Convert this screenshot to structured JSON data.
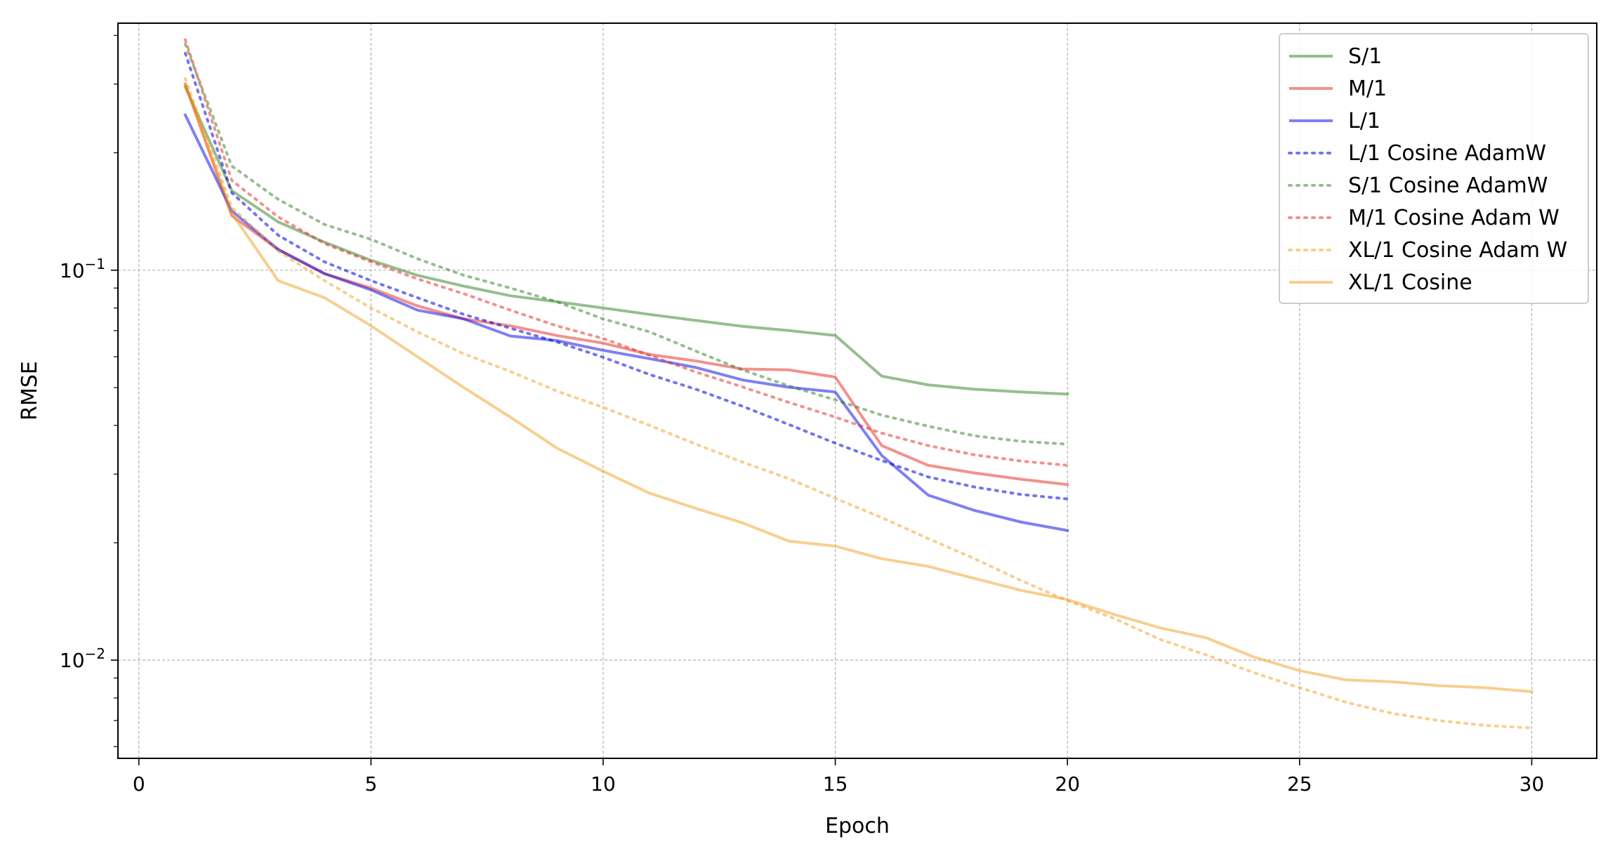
{
  "chart_data": {
    "type": "line",
    "xlabel": "Epoch",
    "ylabel": "RMSE",
    "xlim": [
      -0.45,
      31.4
    ],
    "ylim": [
      0.0056,
      0.43
    ],
    "yscale": "log",
    "grid": true,
    "legend_position": "top-right",
    "x_ticks": [
      {
        "value": 0,
        "label": "0"
      },
      {
        "value": 5,
        "label": "5"
      },
      {
        "value": 10,
        "label": "10"
      },
      {
        "value": 15,
        "label": "15"
      },
      {
        "value": 20,
        "label": "20"
      },
      {
        "value": 25,
        "label": "25"
      },
      {
        "value": 30,
        "label": "30"
      }
    ],
    "y_ticks": [
      {
        "value": 0.1,
        "base": "10",
        "exp": "−1"
      },
      {
        "value": 0.01,
        "base": "10",
        "exp": "−2"
      }
    ],
    "series": [
      {
        "name": "S/1",
        "color": "#2e7d1f",
        "opacity": 0.5,
        "dash": "solid",
        "x": [
          1,
          2,
          3,
          4,
          5,
          6,
          7,
          8,
          9,
          10,
          11,
          12,
          13,
          14,
          15,
          16,
          17,
          18,
          19,
          20
        ],
        "y": [
          0.295,
          0.16,
          0.133,
          0.118,
          0.106,
          0.097,
          0.091,
          0.086,
          0.083,
          0.08,
          0.077,
          0.0743,
          0.0718,
          0.07,
          0.068,
          0.0535,
          0.0508,
          0.0495,
          0.0487,
          0.0481
        ]
      },
      {
        "name": "M/1",
        "color": "#e8231a",
        "opacity": 0.5,
        "dash": "solid",
        "x": [
          1,
          2,
          3,
          4,
          5,
          6,
          7,
          8,
          9,
          10,
          11,
          12,
          13,
          14,
          15,
          16,
          17,
          18,
          19,
          20
        ],
        "y": [
          0.3,
          0.138,
          0.113,
          0.098,
          0.09,
          0.081,
          0.075,
          0.072,
          0.068,
          0.065,
          0.0608,
          0.0585,
          0.0558,
          0.0555,
          0.0532,
          0.0355,
          0.0316,
          0.0302,
          0.0291,
          0.0282
        ]
      },
      {
        "name": "L/1",
        "color": "#0000e8",
        "opacity": 0.5,
        "dash": "solid",
        "x": [
          1,
          2,
          3,
          4,
          5,
          6,
          7,
          8,
          9,
          10,
          11,
          12,
          13,
          14,
          15,
          16,
          17,
          18,
          19,
          20
        ],
        "y": [
          0.25,
          0.142,
          0.113,
          0.098,
          0.089,
          0.079,
          0.075,
          0.0678,
          0.066,
          0.0623,
          0.0593,
          0.0563,
          0.0523,
          0.0501,
          0.0487,
          0.0335,
          0.0265,
          0.0242,
          0.0226,
          0.0215
        ]
      },
      {
        "name": "L/1 Cosine AdamW",
        "color": "#0000e8",
        "opacity": 0.55,
        "dash": "dot",
        "x": [
          1,
          2,
          3,
          4,
          5,
          6,
          7,
          8,
          9,
          10,
          11,
          12,
          13,
          14,
          15,
          16,
          17,
          18,
          19,
          20
        ],
        "y": [
          0.36,
          0.158,
          0.123,
          0.105,
          0.094,
          0.085,
          0.077,
          0.071,
          0.0655,
          0.0598,
          0.054,
          0.0495,
          0.0448,
          0.0402,
          0.036,
          0.0325,
          0.0295,
          0.0278,
          0.0266,
          0.0259
        ]
      },
      {
        "name": "S/1 Cosine AdamW",
        "color": "#2e7d1f",
        "opacity": 0.5,
        "dash": "dot",
        "x": [
          1,
          2,
          3,
          4,
          5,
          6,
          7,
          8,
          9,
          10,
          11,
          12,
          13,
          14,
          15,
          16,
          17,
          18,
          19,
          20
        ],
        "y": [
          0.38,
          0.185,
          0.152,
          0.131,
          0.12,
          0.107,
          0.097,
          0.09,
          0.083,
          0.075,
          0.0695,
          0.062,
          0.0555,
          0.0505,
          0.0465,
          0.0425,
          0.0398,
          0.0376,
          0.0364,
          0.0358
        ]
      },
      {
        "name": "M/1 Cosine Adam W",
        "color": "#e8231a",
        "opacity": 0.5,
        "dash": "dot",
        "x": [
          1,
          2,
          3,
          4,
          5,
          6,
          7,
          8,
          9,
          10,
          11,
          12,
          13,
          14,
          15,
          16,
          17,
          18,
          19,
          20
        ],
        "y": [
          0.39,
          0.17,
          0.137,
          0.117,
          0.105,
          0.095,
          0.087,
          0.079,
          0.072,
          0.0668,
          0.0605,
          0.0548,
          0.0502,
          0.0458,
          0.042,
          0.0382,
          0.0355,
          0.0336,
          0.0324,
          0.0316
        ]
      },
      {
        "name": "XL/1 Cosine Adam W",
        "color": "#f0a020",
        "opacity": 0.5,
        "dash": "dot",
        "x": [
          1,
          2,
          3,
          4,
          5,
          6,
          7,
          8,
          9,
          10,
          11,
          12,
          13,
          14,
          15,
          16,
          17,
          18,
          19,
          20,
          21,
          22,
          23,
          24,
          25,
          26,
          27,
          28,
          29,
          30
        ],
        "y": [
          0.31,
          0.145,
          0.112,
          0.094,
          0.08,
          0.0695,
          0.061,
          0.055,
          0.049,
          0.0445,
          0.04,
          0.0358,
          0.0322,
          0.0292,
          0.026,
          0.0232,
          0.0205,
          0.0182,
          0.016,
          0.0142,
          0.0128,
          0.0113,
          0.0103,
          0.0093,
          0.0085,
          0.0078,
          0.0073,
          0.007,
          0.0068,
          0.0067
        ]
      },
      {
        "name": "XL/1 Cosine",
        "color": "#f0a020",
        "opacity": 0.5,
        "dash": "solid",
        "x": [
          1,
          2,
          3,
          4,
          5,
          6,
          7,
          8,
          9,
          10,
          11,
          12,
          13,
          14,
          15,
          16,
          17,
          18,
          19,
          20,
          21,
          22,
          23,
          24,
          25,
          26,
          27,
          28,
          29,
          30
        ],
        "y": [
          0.3,
          0.14,
          0.094,
          0.085,
          0.072,
          0.06,
          0.05,
          0.042,
          0.035,
          0.0305,
          0.0268,
          0.0245,
          0.0225,
          0.0202,
          0.0196,
          0.0182,
          0.0174,
          0.0162,
          0.0151,
          0.0143,
          0.0131,
          0.0121,
          0.0114,
          0.0102,
          0.0094,
          0.0089,
          0.0088,
          0.0086,
          0.0085,
          0.0083
        ]
      }
    ]
  }
}
